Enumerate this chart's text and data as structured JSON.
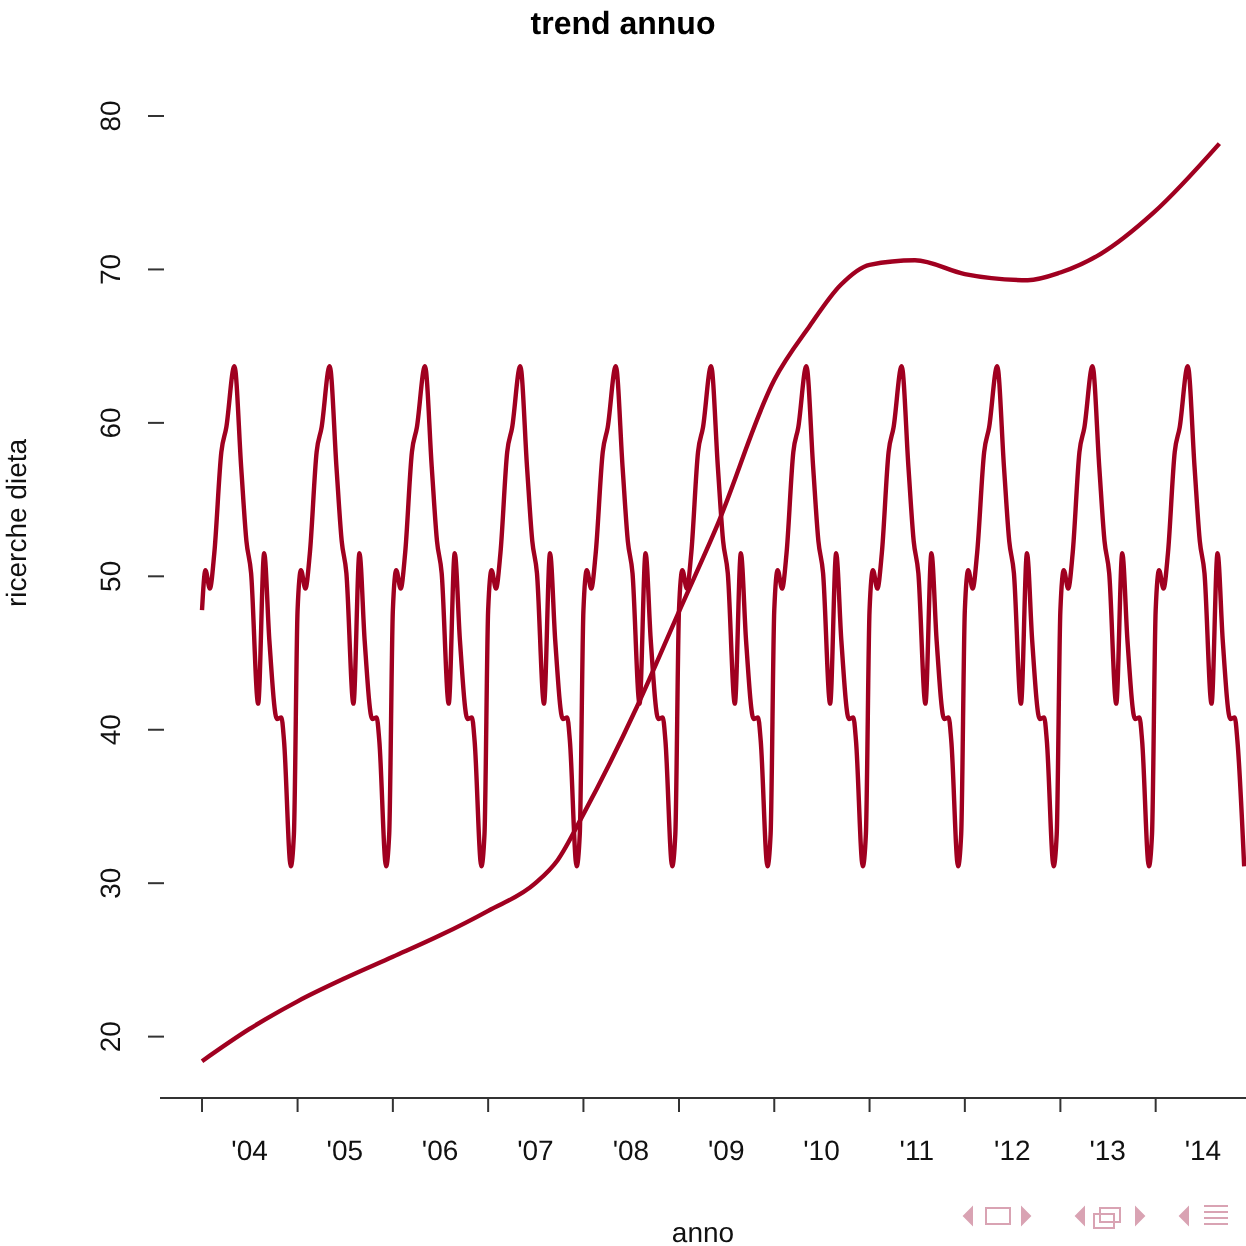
{
  "chart_data": {
    "type": "line",
    "title": "trend annuo",
    "xlabel": "anno",
    "ylabel": "ricerche dieta",
    "xlim": [
      "2003-07-24",
      "2014-12-13"
    ],
    "ylim": [
      16,
      80
    ],
    "xticks": [
      {
        "value": "2004-01-01",
        "label": null
      },
      {
        "value": "2004-07-01",
        "label": "'04"
      },
      {
        "value": "2005-01-01",
        "label": null
      },
      {
        "value": "2005-07-01",
        "label": "'05"
      },
      {
        "value": "2006-01-01",
        "label": null
      },
      {
        "value": "2006-07-01",
        "label": "'06"
      },
      {
        "value": "2007-01-01",
        "label": null
      },
      {
        "value": "2007-07-01",
        "label": "'07"
      },
      {
        "value": "2008-01-01",
        "label": null
      },
      {
        "value": "2008-07-01",
        "label": "'08"
      },
      {
        "value": "2009-01-01",
        "label": null
      },
      {
        "value": "2009-07-01",
        "label": "'09"
      },
      {
        "value": "2010-01-01",
        "label": null
      },
      {
        "value": "2010-07-01",
        "label": "'10"
      },
      {
        "value": "2011-01-01",
        "label": null
      },
      {
        "value": "2011-07-01",
        "label": "'11"
      },
      {
        "value": "2012-01-01",
        "label": null
      },
      {
        "value": "2012-07-01",
        "label": "'12"
      },
      {
        "value": "2013-01-01",
        "label": null
      },
      {
        "value": "2013-07-01",
        "label": "'13"
      },
      {
        "value": "2014-01-01",
        "label": null
      },
      {
        "value": "2014-07-01",
        "label": "'14"
      }
    ],
    "yticks": [
      20,
      30,
      40,
      50,
      60,
      70,
      80
    ],
    "grid": false,
    "legend": false,
    "marker": "none",
    "line_style": "solid",
    "series": [
      {
        "color": "#a00020",
        "x": [
          "2004-01-01",
          "2004-01-14",
          "2004-01-31",
          "2004-02-17",
          "2004-03-15",
          "2004-04-03",
          "2004-05-04",
          "2004-05-30",
          "2004-06-19",
          "2004-07-07",
          "2004-08-03",
          "2004-08-26",
          "2004-09-15",
          "2004-10-14",
          "2004-10-31",
          "2004-11-10",
          "2004-12-06",
          "2004-12-18",
          "2005-01-01",
          "2005-01-14",
          "2005-01-31",
          "2005-02-17",
          "2005-03-15",
          "2005-04-03",
          "2005-05-04",
          "2005-05-30",
          "2005-06-19",
          "2005-07-07",
          "2005-08-03",
          "2005-08-26",
          "2005-09-15",
          "2005-10-14",
          "2005-10-31",
          "2005-11-10",
          "2005-12-06",
          "2005-12-18",
          "2006-01-01",
          "2006-01-14",
          "2006-01-31",
          "2006-02-17",
          "2006-03-15",
          "2006-04-03",
          "2006-05-04",
          "2006-05-30",
          "2006-06-19",
          "2006-07-07",
          "2006-08-03",
          "2006-08-26",
          "2006-09-15",
          "2006-10-14",
          "2006-10-31",
          "2006-11-10",
          "2006-12-06",
          "2006-12-18",
          "2007-01-01",
          "2007-01-14",
          "2007-01-31",
          "2007-02-17",
          "2007-03-15",
          "2007-04-03",
          "2007-05-04",
          "2007-05-30",
          "2007-06-19",
          "2007-07-07",
          "2007-08-03",
          "2007-08-26",
          "2007-09-15",
          "2007-10-14",
          "2007-10-31",
          "2007-11-10",
          "2007-12-06",
          "2007-12-18",
          "2008-01-01",
          "2008-01-14",
          "2008-01-31",
          "2008-02-17",
          "2008-03-15",
          "2008-04-03",
          "2008-05-04",
          "2008-05-30",
          "2008-06-19",
          "2008-07-07",
          "2008-08-03",
          "2008-08-26",
          "2008-09-15",
          "2008-10-14",
          "2008-10-31",
          "2008-11-10",
          "2008-12-06",
          "2008-12-18",
          "2009-01-01",
          "2009-01-14",
          "2009-01-31",
          "2009-02-17",
          "2009-03-15",
          "2009-04-03",
          "2009-05-04",
          "2009-05-30",
          "2009-06-19",
          "2009-07-07",
          "2009-08-03",
          "2009-08-26",
          "2009-09-15",
          "2009-10-14",
          "2009-10-31",
          "2009-11-10",
          "2009-12-06",
          "2009-12-18",
          "2010-01-01",
          "2010-01-14",
          "2010-01-31",
          "2010-02-17",
          "2010-03-15",
          "2010-04-03",
          "2010-05-04",
          "2010-05-30",
          "2010-06-19",
          "2010-07-07",
          "2010-08-03",
          "2010-08-26",
          "2010-09-15",
          "2010-10-14",
          "2010-10-31",
          "2010-11-10",
          "2010-12-06",
          "2010-12-18",
          "2011-01-01",
          "2011-01-14",
          "2011-01-31",
          "2011-02-17",
          "2011-03-15",
          "2011-04-03",
          "2011-05-04",
          "2011-05-30",
          "2011-06-19",
          "2011-07-07",
          "2011-08-03",
          "2011-08-26",
          "2011-09-15",
          "2011-10-14",
          "2011-10-31",
          "2011-11-10",
          "2011-12-06",
          "2011-12-18",
          "2012-01-01",
          "2012-01-14",
          "2012-01-31",
          "2012-02-17",
          "2012-03-15",
          "2012-04-03",
          "2012-05-04",
          "2012-05-30",
          "2012-06-19",
          "2012-07-07",
          "2012-08-03",
          "2012-08-26",
          "2012-09-15",
          "2012-10-14",
          "2012-10-31",
          "2012-11-10",
          "2012-12-06",
          "2012-12-18",
          "2013-01-01",
          "2013-01-14",
          "2013-01-31",
          "2013-02-17",
          "2013-03-15",
          "2013-04-03",
          "2013-05-04",
          "2013-05-30",
          "2013-06-19",
          "2013-07-07",
          "2013-08-03",
          "2013-08-26",
          "2013-09-15",
          "2013-10-14",
          "2013-10-31",
          "2013-11-10",
          "2013-12-06",
          "2013-12-18",
          "2014-01-01",
          "2014-01-14",
          "2014-01-31",
          "2014-02-17",
          "2014-03-15",
          "2014-04-03",
          "2014-05-04",
          "2014-05-30",
          "2014-06-19",
          "2014-07-07",
          "2014-08-03",
          "2014-08-26",
          "2014-09-15",
          "2014-10-14",
          "2014-10-31",
          "2014-11-10",
          "2014-12-06"
        ],
        "values": [
          47.8,
          50.4,
          49.2,
          51.5,
          58.1,
          59.7,
          63.7,
          57.1,
          52.3,
          50.2,
          41.7,
          51.5,
          45.8,
          40.7,
          40.8,
          39.3,
          31.1,
          33.2,
          47.8,
          50.4,
          49.2,
          51.5,
          58.1,
          59.7,
          63.7,
          57.1,
          52.3,
          50.2,
          41.7,
          51.5,
          45.8,
          40.7,
          40.8,
          39.3,
          31.1,
          33.2,
          47.8,
          50.4,
          49.2,
          51.5,
          58.1,
          59.7,
          63.7,
          57.1,
          52.3,
          50.2,
          41.7,
          51.5,
          45.8,
          40.7,
          40.8,
          39.3,
          31.1,
          33.2,
          47.8,
          50.4,
          49.2,
          51.5,
          58.1,
          59.7,
          63.7,
          57.1,
          52.3,
          50.2,
          41.7,
          51.5,
          45.8,
          40.7,
          40.8,
          39.3,
          31.1,
          33.2,
          47.8,
          50.4,
          49.2,
          51.5,
          58.1,
          59.7,
          63.7,
          57.1,
          52.3,
          50.2,
          41.7,
          51.5,
          45.8,
          40.7,
          40.8,
          39.3,
          31.1,
          33.2,
          47.8,
          50.4,
          49.2,
          51.5,
          58.1,
          59.7,
          63.7,
          57.1,
          52.3,
          50.2,
          41.7,
          51.5,
          45.8,
          40.7,
          40.8,
          39.3,
          31.1,
          33.2,
          47.8,
          50.4,
          49.2,
          51.5,
          58.1,
          59.7,
          63.7,
          57.1,
          52.3,
          50.2,
          41.7,
          51.5,
          45.8,
          40.7,
          40.8,
          39.3,
          31.1,
          33.2,
          47.8,
          50.4,
          49.2,
          51.5,
          58.1,
          59.7,
          63.7,
          57.1,
          52.3,
          50.2,
          41.7,
          51.5,
          45.8,
          40.7,
          40.8,
          39.3,
          31.1,
          33.2,
          47.8,
          50.4,
          49.2,
          51.5,
          58.1,
          59.7,
          63.7,
          57.1,
          52.3,
          50.2,
          41.7,
          51.5,
          45.8,
          40.7,
          40.8,
          39.3,
          31.1,
          33.2,
          47.8,
          50.4,
          49.2,
          51.5,
          58.1,
          59.7,
          63.7,
          57.1,
          52.3,
          50.2,
          41.7,
          51.5,
          45.8,
          40.7,
          40.8,
          39.3,
          31.1,
          33.2,
          47.8,
          50.4,
          49.2,
          51.5,
          58.1,
          59.7,
          63.7,
          57.1,
          52.3,
          50.2,
          41.7,
          51.5,
          45.8,
          40.7,
          40.8,
          39.3,
          31.1
        ]
      },
      {
        "color": "#a00020",
        "x": [
          "2004-01-01",
          "2004-07-01",
          "2005-01-01",
          "2005-07-01",
          "2006-01-01",
          "2006-07-01",
          "2007-01-01",
          "2007-07-01",
          "2007-09-24",
          "2008-01-01",
          "2008-07-24",
          "2009-01-01",
          "2009-05-27",
          "2010-01-01",
          "2010-05-16",
          "2010-09-13",
          "2011-01-01",
          "2011-06-24",
          "2012-01-01",
          "2012-08-29",
          "2013-01-01",
          "2013-06-03",
          "2013-12-24",
          "2014-09-02"
        ],
        "values": [
          18.4,
          20.5,
          22.3,
          23.8,
          25.2,
          26.6,
          28.2,
          30.0,
          31.5,
          34.5,
          41.5,
          47.7,
          53.3,
          62.8,
          66.3,
          69.0,
          70.3,
          70.6,
          69.7,
          69.3,
          69.8,
          71.0,
          73.7,
          78.2
        ]
      }
    ]
  }
}
